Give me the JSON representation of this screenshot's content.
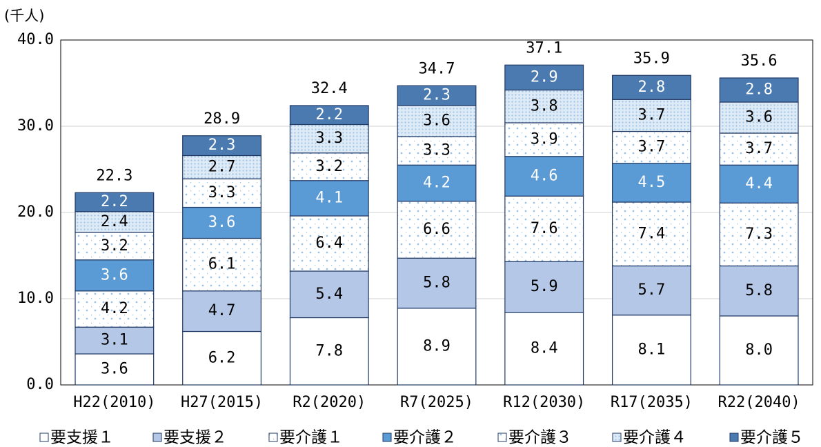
{
  "chart_data": {
    "type": "stacked-bar",
    "y_unit_label": "(千人)",
    "categories": [
      "H22(2010)",
      "H27(2015)",
      "R2(2020)",
      "R7(2025)",
      "R12(2030)",
      "R17(2035)",
      "R22(2040)"
    ],
    "series": [
      {
        "name": "要支援１",
        "color": "#ffffff",
        "values": [
          3.6,
          6.2,
          7.8,
          8.9,
          8.4,
          8.1,
          8.0
        ],
        "value_labels": [
          "3.6",
          "6.2",
          "7.8",
          "8.9",
          "8.4",
          "8.1",
          "8.0"
        ]
      },
      {
        "name": "要支援２",
        "color": "#b4c7e7",
        "values": [
          3.1,
          4.7,
          5.4,
          5.8,
          5.9,
          5.7,
          5.8
        ],
        "value_labels": [
          "3.1",
          "4.7",
          "5.4",
          "5.8",
          "5.9",
          "5.7",
          "5.8"
        ]
      },
      {
        "name": "要介護１",
        "color": "#9dc3e6",
        "pattern": "dots",
        "values": [
          4.2,
          6.1,
          6.4,
          6.6,
          7.6,
          7.4,
          7.3
        ],
        "value_labels": [
          "4.2",
          "6.1",
          "6.4",
          "6.6",
          "7.6",
          "7.4",
          "7.3"
        ]
      },
      {
        "name": "要介護２",
        "color": "#5b9bd5",
        "values": [
          3.6,
          3.6,
          4.1,
          4.2,
          4.6,
          4.5,
          4.4
        ],
        "value_labels": [
          "3.6",
          "3.6",
          "4.1",
          "4.2",
          "4.6",
          "4.5",
          "4.4"
        ]
      },
      {
        "name": "要介護３",
        "color": "#9dc3e6",
        "pattern": "dots",
        "values": [
          3.2,
          3.3,
          3.2,
          3.3,
          3.9,
          3.7,
          3.7
        ],
        "value_labels": [
          "3.2",
          "3.3",
          "3.2",
          "3.3",
          "3.9",
          "3.7",
          "3.7"
        ]
      },
      {
        "name": "要介護４",
        "color": "#9dc3e6",
        "pattern": "dense-dots",
        "values": [
          2.4,
          2.7,
          3.3,
          3.6,
          3.8,
          3.7,
          3.6
        ],
        "value_labels": [
          "2.4",
          "2.7",
          "3.3",
          "3.6",
          "3.8",
          "3.7",
          "3.6"
        ]
      },
      {
        "name": "要介護５",
        "color": "#4a7ab0",
        "values": [
          2.2,
          2.3,
          2.2,
          2.3,
          2.9,
          2.8,
          2.8
        ],
        "value_labels": [
          "2.2",
          "2.3",
          "2.2",
          "2.3",
          "2.9",
          "2.8",
          "2.8"
        ]
      }
    ],
    "totals": [
      22.3,
      28.9,
      32.4,
      34.7,
      37.1,
      35.9,
      35.6
    ],
    "ylim": [
      0,
      40
    ],
    "yticks": [
      {
        "value": 0,
        "label": "0.0"
      },
      {
        "value": 10,
        "label": "10.0"
      },
      {
        "value": 20,
        "label": "20.0"
      },
      {
        "value": 30,
        "label": "30.0"
      },
      {
        "value": 40,
        "label": "40.0"
      }
    ],
    "grid": true,
    "legend": "bottom"
  }
}
